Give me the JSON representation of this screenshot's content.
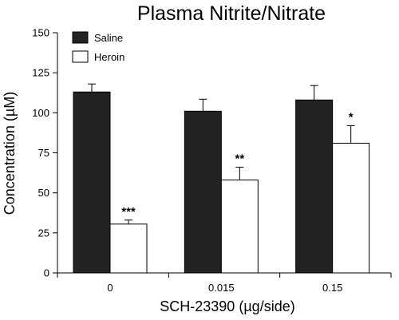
{
  "chart_data": {
    "type": "bar",
    "title": "Plasma Nitrite/Nitrate",
    "xlabel": "SCH-23390 (µg/side)",
    "ylabel": "Concentration (µM)",
    "ylim": [
      0,
      150
    ],
    "yticks": [
      "0",
      "25",
      "50",
      "75",
      "100",
      "125",
      "150"
    ],
    "categories": [
      "0",
      "0.015",
      "0.15"
    ],
    "series": [
      {
        "name": "Saline",
        "values": [
          113,
          101,
          108
        ],
        "errors": [
          5,
          7.5,
          9
        ],
        "color": "#222222"
      },
      {
        "name": "Heroin",
        "values": [
          30.5,
          58,
          81
        ],
        "errors": [
          2.5,
          8,
          11
        ],
        "color": "#ffffff"
      }
    ],
    "annotations": [
      "***",
      "**",
      "*"
    ],
    "legend": "top-left",
    "grid": false
  }
}
